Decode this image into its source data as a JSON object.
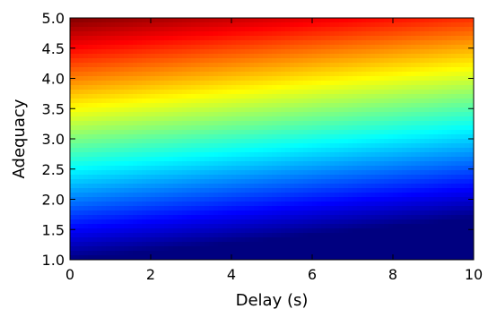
{
  "chart_data": {
    "type": "heatmap",
    "title": "",
    "xlabel": "Delay (s)",
    "ylabel": "Adequacy",
    "xlim": [
      0,
      10
    ],
    "ylim": [
      1.0,
      5.0
    ],
    "x_ticks": [
      "0",
      "2",
      "4",
      "6",
      "8",
      "10"
    ],
    "y_ticks": [
      "1.0",
      "1.5",
      "2.0",
      "2.5",
      "3.0",
      "3.5",
      "4.0",
      "4.5",
      "5.0"
    ],
    "colormap": "jet",
    "grid": false,
    "legend": "none",
    "field": {
      "description_of_values": "color value v at (delay, adequacy), v = (adequacy - 1 - delay*slope)/range",
      "corners": {
        "delay_0_adequacy_1": 0.0,
        "delay_0_adequacy_5": 1.0,
        "delay_10_adequacy_1": -0.17,
        "delay_10_adequacy_5": 0.83
      }
    }
  }
}
